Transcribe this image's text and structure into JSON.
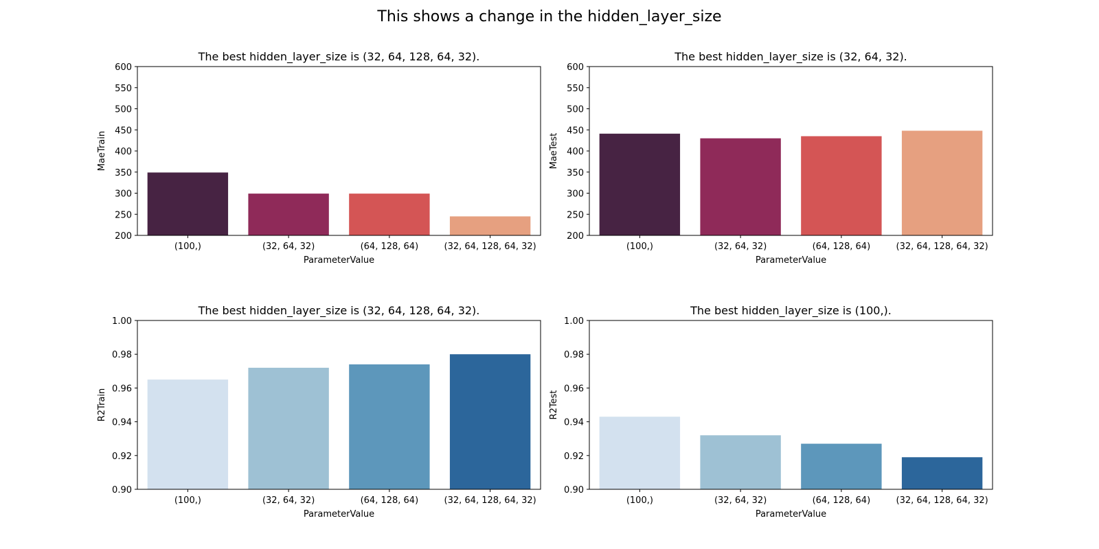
{
  "suptitle": "This shows a change in the hidden_layer_size",
  "chart_data": [
    {
      "type": "bar",
      "title": "The best hidden_layer_size is (32, 64, 128, 64, 32).",
      "xlabel": "ParameterValue",
      "ylabel": "MaeTrain",
      "categories": [
        "(100,)",
        "(32, 64, 32)",
        "(64, 128, 64)",
        "(32, 64, 128, 64, 32)"
      ],
      "values": [
        349,
        299,
        299,
        245
      ],
      "ylim": [
        200,
        600
      ],
      "yticks": [
        "200",
        "250",
        "300",
        "350",
        "400",
        "450",
        "500",
        "550",
        "600"
      ],
      "colors": [
        "#472343",
        "#8f2a59",
        "#d45555",
        "#e6a080"
      ]
    },
    {
      "type": "bar",
      "title": "The best hidden_layer_size is (32, 64, 32).",
      "xlabel": "ParameterValue",
      "ylabel": "MaeTest",
      "categories": [
        "(100,)",
        "(32, 64, 32)",
        "(64, 128, 64)",
        "(32, 64, 128, 64, 32)"
      ],
      "values": [
        441,
        430,
        435,
        448
      ],
      "ylim": [
        200,
        600
      ],
      "yticks": [
        "200",
        "250",
        "300",
        "350",
        "400",
        "450",
        "500",
        "550",
        "600"
      ],
      "colors": [
        "#472343",
        "#8f2a59",
        "#d45555",
        "#e6a080"
      ]
    },
    {
      "type": "bar",
      "title": "The best hidden_layer_size is (32, 64, 128, 64, 32).",
      "xlabel": "ParameterValue",
      "ylabel": "R2Train",
      "categories": [
        "(100,)",
        "(32, 64, 32)",
        "(64, 128, 64)",
        "(32, 64, 128, 64, 32)"
      ],
      "values": [
        0.965,
        0.972,
        0.974,
        0.98
      ],
      "ylim": [
        0.9,
        1.0
      ],
      "yticks": [
        "0.90",
        "0.92",
        "0.94",
        "0.96",
        "0.98",
        "1.00"
      ],
      "colors": [
        "#d3e1ef",
        "#9ec1d4",
        "#5d97bb",
        "#2c669b"
      ]
    },
    {
      "type": "bar",
      "title": "The best hidden_layer_size is (100,).",
      "xlabel": "ParameterValue",
      "ylabel": "R2Test",
      "categories": [
        "(100,)",
        "(32, 64, 32)",
        "(64, 128, 64)",
        "(32, 64, 128, 64, 32)"
      ],
      "values": [
        0.943,
        0.932,
        0.927,
        0.919
      ],
      "ylim": [
        0.9,
        1.0
      ],
      "yticks": [
        "0.90",
        "0.92",
        "0.94",
        "0.96",
        "0.98",
        "1.00"
      ],
      "colors": [
        "#d3e1ef",
        "#9ec1d4",
        "#5d97bb",
        "#2c669b"
      ]
    }
  ]
}
